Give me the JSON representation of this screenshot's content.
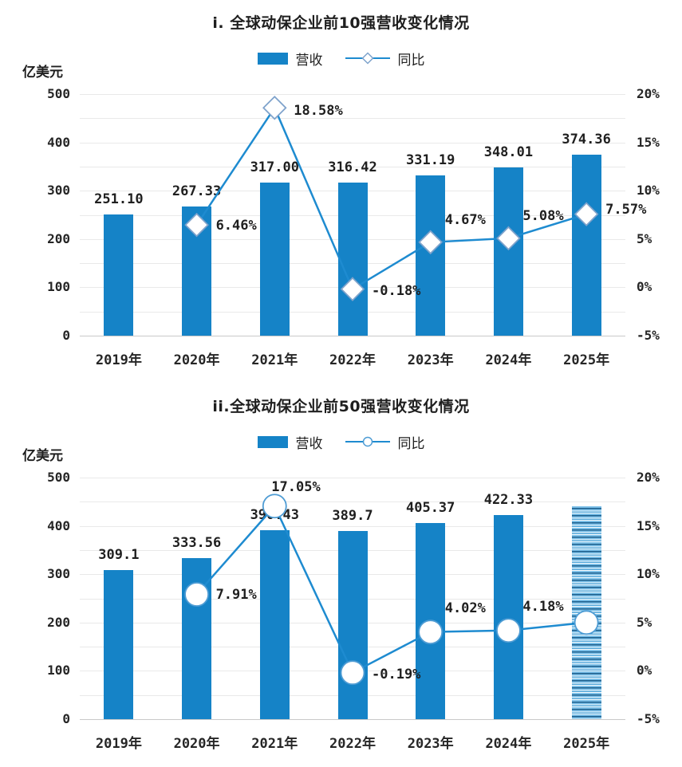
{
  "colors": {
    "bar": "#1583C7",
    "line": "#1E8BD0",
    "diamond_stroke": "#7FA3CC",
    "circle_stroke": "#4E9CD4",
    "grid": "#E9E9E9",
    "axis_line": "#C9C9C9",
    "text": "#1F1F1F"
  },
  "chart_data": [
    {
      "type": "bar+line-combo",
      "title": "i. 全球动保企业前10强营收变化情况",
      "unit": "亿美元",
      "legend_position": "top",
      "grid": true,
      "categories": [
        "2019年",
        "2020年",
        "2021年",
        "2022年",
        "2023年",
        "2024年",
        "2025年"
      ],
      "left_axis": {
        "min": 0,
        "max": 500,
        "minor_step": 50,
        "tick_labels": [
          "500",
          "400",
          "300",
          "200",
          "100",
          "0"
        ]
      },
      "right_axis": {
        "min": -5,
        "max": 20,
        "step": 5,
        "tick_labels": [
          "20%",
          "15%",
          "10%",
          "5%",
          "0%",
          "-5%"
        ]
      },
      "series": [
        {
          "name": "营收",
          "type": "bar",
          "axis": "left",
          "values": [
            251.1,
            267.33,
            317.0,
            316.42,
            331.19,
            348.01,
            374.36
          ],
          "value_labels": [
            "251.10",
            "267.33",
            "317.00",
            "316.42",
            "331.19",
            "348.01",
            "374.36"
          ],
          "bar_styles": [
            "solid",
            "solid",
            "solid",
            "solid",
            "solid",
            "solid",
            "solid"
          ]
        },
        {
          "name": "同比",
          "type": "line",
          "axis": "right",
          "marker": "diamond",
          "values": [
            null,
            6.46,
            18.58,
            -0.18,
            4.67,
            5.08,
            7.57
          ],
          "value_labels": [
            "",
            "6.46%",
            "18.58%",
            "-0.18%",
            "4.67%",
            "5.08%",
            "7.57%"
          ],
          "label_offsets": [
            [
              0,
              0
            ],
            [
              24,
              1
            ],
            [
              24,
              4
            ],
            [
              24,
              2
            ],
            [
              18,
              -28
            ],
            [
              18,
              -28
            ],
            [
              24,
              -6
            ]
          ]
        }
      ]
    },
    {
      "type": "bar+line-combo",
      "title": "ii.全球动保企业前50强营收变化情况",
      "unit": "亿美元",
      "legend_position": "top",
      "grid": true,
      "categories": [
        "2019年",
        "2020年",
        "2021年",
        "2022年",
        "2023年",
        "2024年",
        "2025年"
      ],
      "left_axis": {
        "min": 0,
        "max": 500,
        "minor_step": 50,
        "tick_labels": [
          "500",
          "400",
          "300",
          "200",
          "100",
          "0"
        ]
      },
      "right_axis": {
        "min": -5,
        "max": 20,
        "step": 5,
        "tick_labels": [
          "20%",
          "15%",
          "10%",
          "5%",
          "0%",
          "-5%"
        ]
      },
      "series": [
        {
          "name": "营收",
          "type": "bar",
          "axis": "left",
          "values": [
            309.1,
            333.56,
            390.43,
            389.7,
            405.37,
            422.33,
            443
          ],
          "value_labels": [
            "309.1",
            "333.56",
            "390.43",
            "389.7",
            "405.37",
            "422.33",
            ""
          ],
          "bar_styles": [
            "solid",
            "solid",
            "solid",
            "solid",
            "solid",
            "solid",
            "hatched"
          ]
        },
        {
          "name": "同比",
          "type": "line",
          "axis": "right",
          "marker": "circle",
          "values": [
            null,
            7.91,
            17.05,
            -0.19,
            4.02,
            4.18,
            5.0
          ],
          "value_labels": [
            "",
            "7.91%",
            "17.05%",
            "-0.19%",
            "4.02%",
            "4.18%",
            ""
          ],
          "label_offsets": [
            [
              0,
              0
            ],
            [
              24,
              0
            ],
            [
              -4,
              -24
            ],
            [
              24,
              2
            ],
            [
              18,
              -30
            ],
            [
              18,
              -30
            ],
            [
              0,
              0
            ]
          ]
        }
      ]
    }
  ]
}
